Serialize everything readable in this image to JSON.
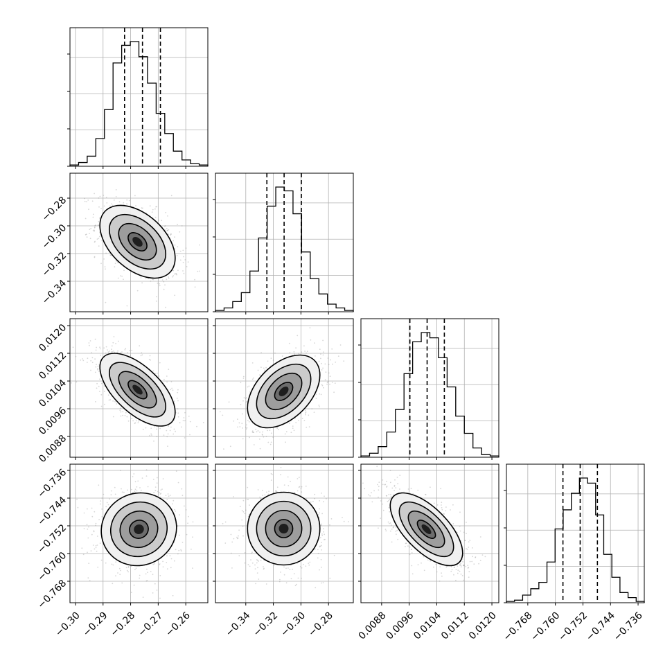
{
  "chart_data": {
    "type": "corner",
    "n_params": 4,
    "grid": true,
    "parameters": [
      {
        "index": 0,
        "range": [
          -0.302,
          -0.252
        ],
        "ticks": [
          -0.3,
          -0.29,
          -0.28,
          -0.27,
          -0.26
        ],
        "tick_labels": [
          "−0.30",
          "−0.29",
          "−0.28",
          "−0.27",
          "−0.26"
        ],
        "quantiles": [
          -0.2822,
          -0.2757,
          -0.2692
        ],
        "hist_counts": [
          1,
          3,
          8,
          22,
          45,
          82,
          96,
          99,
          87,
          66,
          42,
          26,
          12,
          5,
          2,
          1
        ]
      },
      {
        "index": 1,
        "range": [
          -0.362,
          -0.262
        ],
        "ticks": [
          -0.34,
          -0.32,
          -0.3,
          -0.28
        ],
        "tick_labels": [
          "−0.34",
          "−0.32",
          "−0.30",
          "−0.28"
        ],
        "quantiles": [
          -0.3247,
          -0.3122,
          -0.2997
        ],
        "hist_counts": [
          1,
          3,
          8,
          15,
          32,
          58,
          83,
          98,
          95,
          77,
          47,
          26,
          14,
          6,
          3,
          1
        ]
      },
      {
        "index": 2,
        "range": [
          0.0082,
          0.0122
        ],
        "ticks": [
          0.0088,
          0.0096,
          0.0104,
          0.0112,
          0.012
        ],
        "tick_labels": [
          "0.0088",
          "0.0096",
          "0.0104",
          "0.0112",
          "0.0120"
        ],
        "quantiles": [
          0.00962,
          0.01012,
          0.01062
        ],
        "hist_counts": [
          1,
          3,
          8,
          19,
          36,
          63,
          87,
          94,
          90,
          75,
          53,
          31,
          18,
          7,
          2,
          1
        ]
      },
      {
        "index": 3,
        "range": [
          -0.7742,
          -0.7342
        ],
        "ticks": [
          -0.768,
          -0.76,
          -0.752,
          -0.744,
          -0.736
        ],
        "tick_labels": [
          "−0.768",
          "−0.760",
          "−0.752",
          "−0.744",
          "−0.736"
        ],
        "quantiles": [
          -0.7578,
          -0.7528,
          -0.7478
        ],
        "hist_counts": [
          1,
          2,
          6,
          11,
          16,
          32,
          58,
          73,
          86,
          98,
          94,
          69,
          38,
          20,
          8,
          4,
          1
        ]
      }
    ],
    "pairs": [
      {
        "x": 0,
        "y": 1,
        "center": [
          -0.2775,
          -0.3115
        ],
        "sd": [
          0.0065,
          0.0125
        ],
        "rho": -0.45
      },
      {
        "x": 0,
        "y": 2,
        "center": [
          -0.2775,
          0.01015
        ],
        "sd": [
          0.0065,
          0.0005
        ],
        "rho": -0.62
      },
      {
        "x": 1,
        "y": 2,
        "center": [
          -0.3125,
          0.0101
        ],
        "sd": [
          0.0125,
          0.0005
        ],
        "rho": 0.45
      },
      {
        "x": 0,
        "y": 3,
        "center": [
          -0.277,
          -0.753
        ],
        "sd": [
          0.0065,
          0.005
        ],
        "rho": 0.05
      },
      {
        "x": 1,
        "y": 3,
        "center": [
          -0.3125,
          -0.7528
        ],
        "sd": [
          0.0125,
          0.005
        ],
        "rho": 0.0
      },
      {
        "x": 2,
        "y": 3,
        "center": [
          0.0101,
          -0.753
        ],
        "sd": [
          0.0005,
          0.005
        ],
        "rho": -0.65
      }
    ],
    "contour_levels_sigma": [
      0.5,
      1.0,
      1.5,
      2.0
    ],
    "hist_y_ticks_fraction": [
      0.0,
      0.3,
      0.6,
      0.9
    ]
  }
}
